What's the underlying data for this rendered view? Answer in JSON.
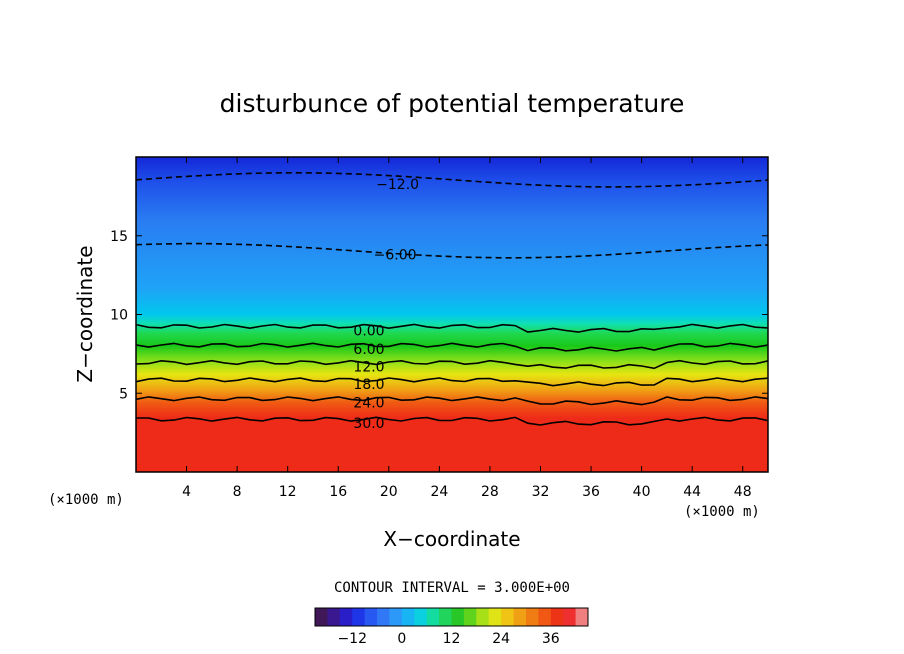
{
  "chart_data": {
    "type": "heatmap",
    "title": "disturbunce of potential temperature",
    "xlabel": "X−coordinate",
    "ylabel": "Z−coordinate",
    "x_unit_left": "(×1000 m)",
    "x_unit_right": "(×1000 m)",
    "xlim": [
      0,
      50
    ],
    "ylim": [
      0,
      20
    ],
    "x_ticks": [
      "4",
      "8",
      "12",
      "16",
      "20",
      "24",
      "28",
      "32",
      "36",
      "40",
      "44",
      "48"
    ],
    "y_ticks": [
      "5",
      "10",
      "15"
    ],
    "contour_interval_text": "CONTOUR INTERVAL = 3.000E+00",
    "contour_labels": [
      {
        "text": "−12.0",
        "value": -12,
        "x": 19.0,
        "z": 18.3
      },
      {
        "text": "−6.00",
        "value": -6,
        "x": 18.8,
        "z": 13.8
      },
      {
        "text": "0.00",
        "value": 0,
        "x": 17.2,
        "z": 9.0
      },
      {
        "text": "6.00",
        "value": 6,
        "x": 17.2,
        "z": 7.8
      },
      {
        "text": "12.0",
        "value": 12,
        "x": 17.2,
        "z": 6.7
      },
      {
        "text": "18.0",
        "value": 18,
        "x": 17.2,
        "z": 5.6
      },
      {
        "text": "24.0",
        "value": 24,
        "x": 17.2,
        "z": 4.4
      },
      {
        "text": "30.0",
        "value": 30,
        "x": 17.2,
        "z": 3.1
      }
    ],
    "colorbar": {
      "ticks": [
        "−12",
        "0",
        "12",
        "24",
        "36"
      ],
      "tick_values": [
        -12,
        0,
        12,
        24,
        36
      ],
      "range": [
        -21,
        45
      ]
    }
  }
}
